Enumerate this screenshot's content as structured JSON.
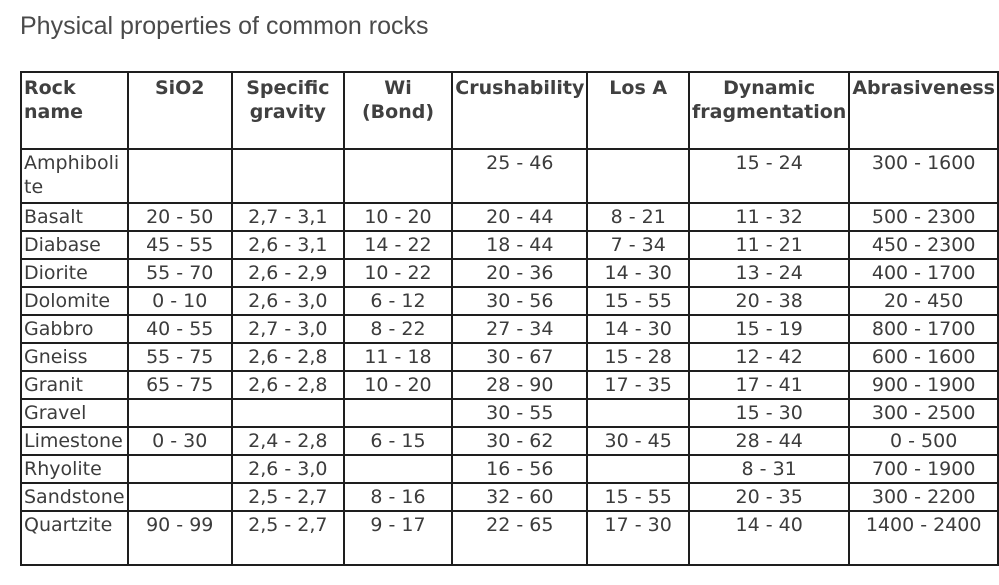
{
  "title": "Physical properties of common rocks",
  "table": {
    "headers": [
      "Rock name",
      "SiO2",
      "Specific gravity",
      "Wi (Bond)",
      "Crushability",
      "Los A",
      "Dynamic fragmentation",
      "Abrasiveness"
    ],
    "rows": [
      [
        "Amphibolite",
        "",
        "",
        "",
        "25 - 46",
        "",
        "15 - 24",
        "300 - 1600"
      ],
      [
        "Basalt",
        "20 - 50",
        "2,7 - 3,1",
        "10 - 20",
        "20 - 44",
        "8 - 21",
        "11 - 32",
        "500 - 2300"
      ],
      [
        "Diabase",
        "45 - 55",
        "2,6 - 3,1",
        "14 - 22",
        "18 - 44",
        "7 - 34",
        "11 - 21",
        "450 - 2300"
      ],
      [
        "Diorite",
        "55 - 70",
        "2,6 - 2,9",
        "10 - 22",
        "20 - 36",
        "14 - 30",
        "13 - 24",
        "400 - 1700"
      ],
      [
        "Dolomite",
        "0 - 10",
        "2,6 - 3,0",
        "6 - 12",
        "30 - 56",
        "15 - 55",
        "20 - 38",
        "20 - 450"
      ],
      [
        "Gabbro",
        "40 - 55",
        "2,7 - 3,0",
        "8 - 22",
        "27 - 34",
        "14 - 30",
        "15 - 19",
        "800 - 1700"
      ],
      [
        "Gneiss",
        "55 - 75",
        "2,6 - 2,8",
        "11 - 18",
        "30 - 67",
        "15 - 28",
        "12 - 42",
        "600 - 1600"
      ],
      [
        "Granit",
        "65 - 75",
        "2,6 - 2,8",
        "10 - 20",
        "28 - 90",
        "17 - 35",
        "17 - 41",
        "900 - 1900"
      ],
      [
        "Gravel",
        "",
        "",
        "",
        "30 - 55",
        "",
        "15 - 30",
        "300 - 2500"
      ],
      [
        "Limestone",
        "0 - 30",
        "2,4 - 2,8",
        "6 - 15",
        "30 - 62",
        "30 - 45",
        "28 - 44",
        "0 - 500"
      ],
      [
        "Rhyolite",
        "",
        "2,6 - 3,0",
        "",
        "16 - 56",
        "",
        "8 - 31",
        "700 - 1900"
      ],
      [
        "Sandstone",
        "",
        "2,5 - 2,7",
        "8 - 16",
        "32 - 60",
        "15 - 55",
        "20 - 35",
        "300 - 2200"
      ],
      [
        "Quartzite",
        "90 - 99",
        "2,5 - 2,7",
        "9 - 17",
        "22 - 65",
        "17 - 30",
        "14 - 40",
        "1400 - 2400"
      ]
    ]
  }
}
